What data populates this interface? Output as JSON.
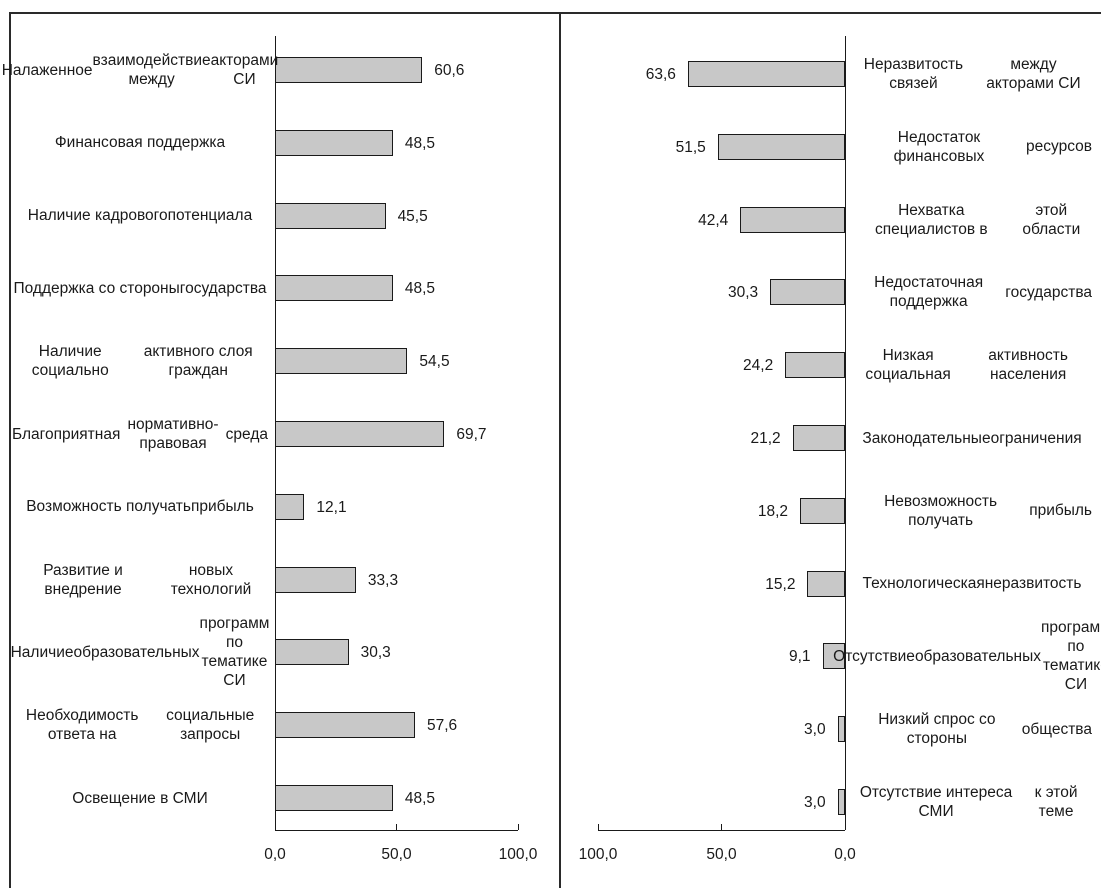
{
  "chart_data": [
    {
      "type": "bar",
      "orientation": "horizontal",
      "xlim": [
        0,
        100
      ],
      "xticks": [
        "0,0",
        "50,0",
        "100,0"
      ],
      "categories": [
        "Налаженное взаимодействие между акторами СИ",
        "Финансовая поддержка",
        "Наличие кадрового потенциала",
        "Поддержка со стороны государства",
        "Наличие социально активного слоя граждан",
        "Благоприятная нормативно-правовая среда",
        "Возможность получать прибыль",
        "Развитие и внедрение новых технологий",
        "Наличие образовательных программ по тематике СИ",
        "Необходимость ответа на социальные запросы",
        "Освещение в СМИ"
      ],
      "label_lines": [
        [
          "Налаженное",
          "взаимодействие между",
          "акторами СИ"
        ],
        [
          "Финансовая поддержка"
        ],
        [
          "Наличие кадрового",
          "потенциала"
        ],
        [
          "Поддержка со стороны",
          "государства"
        ],
        [
          "Наличие социально",
          "активного слоя граждан"
        ],
        [
          "Благоприятная",
          "нормативно-правовая",
          "среда"
        ],
        [
          "Возможность получать",
          "прибыль"
        ],
        [
          "Развитие и внедрение",
          "новых технологий"
        ],
        [
          "Наличие",
          "образовательных",
          "программ по тематике СИ"
        ],
        [
          "Необходимость ответа на",
          "социальные запросы"
        ],
        [
          "Освещение в СМИ"
        ]
      ],
      "values": [
        60.6,
        48.5,
        45.5,
        48.5,
        54.5,
        69.7,
        12.1,
        33.3,
        30.3,
        57.6,
        48.5
      ],
      "value_labels": [
        "60,6",
        "48,5",
        "45,5",
        "48,5",
        "54,5",
        "69,7",
        "12,1",
        "33,3",
        "30,3",
        "57,6",
        "48,5"
      ],
      "bar_color": "#c8c8c8"
    },
    {
      "type": "bar",
      "orientation": "horizontal",
      "direction": "reversed",
      "xlim": [
        0,
        100
      ],
      "xticks": [
        "100,0",
        "50,0",
        "0,0"
      ],
      "categories": [
        "Неразвитость связей между акторами СИ",
        "Недостаток финансовых ресурсов",
        "Нехватка специалистов в этой области",
        "Недостаточная поддержка государства",
        "Низкая социальная активность населения",
        "Законодательные ограничения",
        "Невозможность получать прибыль",
        "Технологическая неразвитость",
        "Отсутствие образовательных программ по тематике СИ",
        "Низкий спрос со стороны общества",
        "Отсутствие интереса СМИ к этой теме"
      ],
      "label_lines": [
        [
          "Неразвитость связей",
          "между акторами СИ"
        ],
        [
          "Недостаток финансовых",
          "ресурсов"
        ],
        [
          "Нехватка специалистов в",
          "этой области"
        ],
        [
          "Недостаточная поддержка",
          "государства"
        ],
        [
          "Низкая социальная",
          "активность населения"
        ],
        [
          "Законодательные",
          "ограничения"
        ],
        [
          "Невозможность получать",
          "прибыль"
        ],
        [
          "Технологическая",
          "неразвитость"
        ],
        [
          "Отсутствие",
          "образовательных",
          "программ по тематике СИ"
        ],
        [
          "Низкий спрос со стороны",
          "общества"
        ],
        [
          "Отсутствие интереса СМИ",
          "к этой теме"
        ]
      ],
      "values": [
        63.6,
        51.5,
        42.4,
        30.3,
        24.2,
        21.2,
        18.2,
        15.2,
        9.1,
        3.0,
        3.0
      ],
      "value_labels": [
        "63,6",
        "51,5",
        "42,4",
        "30,3",
        "24,2",
        "21,2",
        "18,2",
        "15,2",
        "9,1",
        "3,0",
        "3,0"
      ],
      "bar_color": "#c8c8c8"
    }
  ]
}
